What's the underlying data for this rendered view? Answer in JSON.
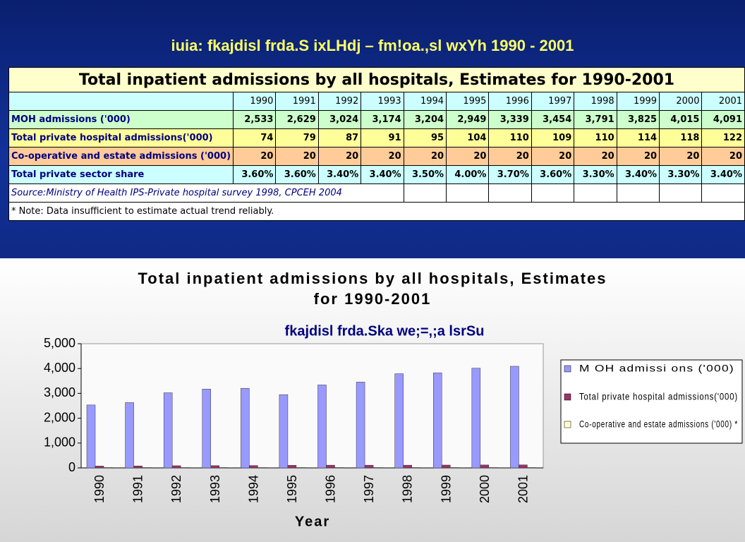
{
  "slide_title": "iuia: fkajdisl frda.S ixLHdj – fm!oa.,sl wxYh 1990 - 2001",
  "table": {
    "title": "Total inpatient admissions by all hospitals, Estimates for 1990-2001",
    "header": [
      "1990",
      "1991",
      "1992",
      "1993",
      "1994",
      "1995",
      "1996",
      "1997",
      "1998",
      "1999",
      "2000",
      "2001"
    ],
    "rows": [
      {
        "label": "MOH admissions ('000)",
        "cells": [
          "2,533",
          "2,629",
          "3,024",
          "3,174",
          "3,204",
          "2,949",
          "3,339",
          "3,454",
          "3,791",
          "3,825",
          "4,015",
          "4,091"
        ]
      },
      {
        "label": "Total private hospital admissions('000)",
        "cells": [
          "74",
          "79",
          "87",
          "91",
          "95",
          "104",
          "110",
          "109",
          "110",
          "114",
          "118",
          "122"
        ]
      },
      {
        "label": "Co-operative and estate admissions ('000)",
        "cells": [
          "20",
          "20",
          "20",
          "20",
          "20",
          "20",
          "20",
          "20",
          "20",
          "20",
          "20",
          "20"
        ]
      },
      {
        "label": "Total private sector share",
        "cells": [
          "3.60%",
          "3.60%",
          "3.40%",
          "3.40%",
          "3.50%",
          "4.00%",
          "3.70%",
          "3.60%",
          "3.30%",
          "3.40%",
          "3.30%",
          "3.40%"
        ]
      }
    ],
    "source": "Source:Ministry of Health IPS-Private hospital survey 1998, CPCEH 2004",
    "note": "* Note: Data insufficient to estimate actual trend reliably."
  },
  "chart_data": {
    "type": "bar",
    "title": [
      "Total inpatient admissions by all hospitals, Estimates",
      "for 1990-2001"
    ],
    "subtitle": "fkajdisl frda.Ska we;=,;a lsrSu",
    "x_label": "Year",
    "categories": [
      "1990",
      "1991",
      "1992",
      "1993",
      "1994",
      "1995",
      "1996",
      "1997",
      "1998",
      "1999",
      "2000",
      "2001"
    ],
    "series": [
      {
        "name": "M OH admissi ons ('000)",
        "color": "#9999ff",
        "values": [
          2533,
          2629,
          3024,
          3174,
          3204,
          2949,
          3339,
          3454,
          3791,
          3825,
          4015,
          4091
        ]
      },
      {
        "name": "Total private hospital admissions('000)",
        "color": "#993366",
        "values": [
          74,
          79,
          87,
          91,
          95,
          104,
          110,
          109,
          110,
          114,
          118,
          122
        ]
      },
      {
        "name": "Co-operative and estate admissions ('000) *",
        "color": "#ffffcc",
        "values": [
          20,
          20,
          20,
          20,
          20,
          20,
          20,
          20,
          20,
          20,
          20,
          20
        ]
      }
    ],
    "ylim": [
      0,
      5000
    ],
    "yticks": [
      0,
      {
        "value": 1000,
        "label": "1,000"
      },
      {
        "value": 2000,
        "label": "2,000"
      },
      {
        "value": 3000,
        "label": "3,000"
      },
      {
        "value": 4000,
        "label": "4,000"
      },
      {
        "value": 5000,
        "label": "5,000"
      }
    ],
    "legend": "right"
  }
}
